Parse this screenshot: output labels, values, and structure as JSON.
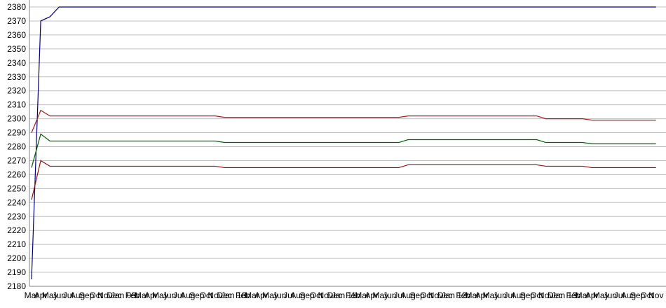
{
  "chart_data": {
    "type": "line",
    "categories": [
      "Mar",
      "Apr",
      "May",
      "Jun",
      "Jul",
      "Aug",
      "Sep",
      "Oct",
      "Nov",
      "Dec",
      "Jan 09",
      "Feb",
      "Mar",
      "Apr",
      "May",
      "Jun",
      "Jul",
      "Aug",
      "Sep",
      "Oct",
      "Nov",
      "Dec",
      "Jan 10",
      "Feb",
      "Mar",
      "Apr",
      "May",
      "Jun",
      "Jul",
      "Aug",
      "Sep",
      "Oct",
      "Nov",
      "Dec",
      "Jan 11",
      "Feb",
      "Mar",
      "Apr",
      "May",
      "Jun",
      "Jul",
      "Aug",
      "Sep",
      "Oct",
      "Nov",
      "Dec",
      "Jan 12",
      "Feb",
      "Mar",
      "Apr",
      "May",
      "Jun",
      "Jul",
      "Aug",
      "Sep",
      "Oct",
      "Nov",
      "Dec",
      "Jan 13",
      "Feb",
      "Mar",
      "Apr",
      "May",
      "Jun",
      "Jul",
      "Aug",
      "Sep",
      "Oct",
      "Nov"
    ],
    "series": [
      {
        "color": "#000080",
        "values": [
          2185,
          2370,
          2373,
          2380,
          2380,
          2380,
          2380,
          2380,
          2380,
          2380,
          2380,
          2380,
          2380,
          2380,
          2380,
          2380,
          2380,
          2380,
          2380,
          2380,
          2380,
          2380,
          2380,
          2380,
          2380,
          2380,
          2380,
          2380,
          2380,
          2380,
          2380,
          2380,
          2380,
          2380,
          2380,
          2380,
          2380,
          2380,
          2380,
          2380,
          2380,
          2380,
          2380,
          2380,
          2380,
          2380,
          2380,
          2380,
          2380,
          2380,
          2380,
          2380,
          2380,
          2380,
          2380,
          2380,
          2380,
          2380,
          2380,
          2380,
          2380,
          2380,
          2380,
          2380,
          2380,
          2380,
          2380,
          2380,
          2380
        ]
      },
      {
        "color": "#b01818",
        "values": [
          2290,
          2306,
          2302,
          2302,
          2302,
          2302,
          2302,
          2302,
          2302,
          2302,
          2302,
          2302,
          2302,
          2302,
          2302,
          2302,
          2302,
          2302,
          2302,
          2302,
          2302,
          2301,
          2301,
          2301,
          2301,
          2301,
          2301,
          2301,
          2301,
          2301,
          2301,
          2301,
          2301,
          2301,
          2301,
          2301,
          2301,
          2301,
          2301,
          2301,
          2301,
          2302,
          2302,
          2302,
          2302,
          2302,
          2302,
          2302,
          2302,
          2302,
          2302,
          2302,
          2302,
          2302,
          2302,
          2302,
          2300,
          2300,
          2300,
          2300,
          2300,
          2299,
          2299,
          2299,
          2299,
          2299,
          2299,
          2299,
          2299
        ]
      },
      {
        "color": "#006400",
        "values": [
          2265,
          2289,
          2284,
          2284,
          2284,
          2284,
          2284,
          2284,
          2284,
          2284,
          2284,
          2284,
          2284,
          2284,
          2284,
          2284,
          2284,
          2284,
          2284,
          2284,
          2284,
          2283,
          2283,
          2283,
          2283,
          2283,
          2283,
          2283,
          2283,
          2283,
          2283,
          2283,
          2283,
          2283,
          2283,
          2283,
          2283,
          2283,
          2283,
          2283,
          2283,
          2285,
          2285,
          2285,
          2285,
          2285,
          2285,
          2285,
          2285,
          2285,
          2285,
          2285,
          2285,
          2285,
          2285,
          2285,
          2283,
          2283,
          2283,
          2283,
          2283,
          2282,
          2282,
          2282,
          2282,
          2282,
          2282,
          2282,
          2282
        ]
      },
      {
        "color": "#9a1010",
        "values": [
          2242,
          2270,
          2266,
          2266,
          2266,
          2266,
          2266,
          2266,
          2266,
          2266,
          2266,
          2266,
          2266,
          2266,
          2266,
          2266,
          2266,
          2266,
          2266,
          2266,
          2266,
          2265,
          2265,
          2265,
          2265,
          2265,
          2265,
          2265,
          2265,
          2265,
          2265,
          2265,
          2265,
          2265,
          2265,
          2265,
          2265,
          2265,
          2265,
          2265,
          2265,
          2267,
          2267,
          2267,
          2267,
          2267,
          2267,
          2267,
          2267,
          2267,
          2267,
          2267,
          2267,
          2267,
          2267,
          2267,
          2266,
          2266,
          2266,
          2266,
          2266,
          2265,
          2265,
          2265,
          2265,
          2265,
          2265,
          2265,
          2265
        ]
      }
    ],
    "ylim": [
      2180,
      2380
    ],
    "yticks": [
      2180,
      2190,
      2200,
      2210,
      2220,
      2230,
      2240,
      2250,
      2260,
      2270,
      2280,
      2290,
      2300,
      2310,
      2320,
      2330,
      2340,
      2350,
      2360,
      2370,
      2380
    ],
    "grid": true
  }
}
